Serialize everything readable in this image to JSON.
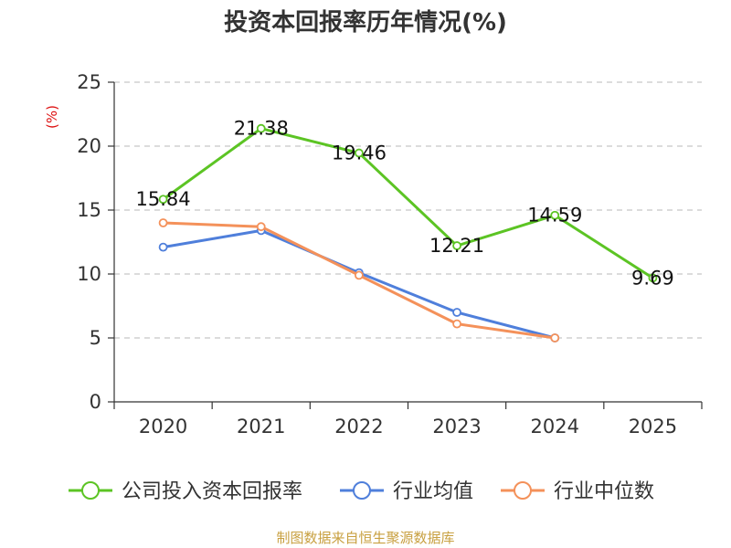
{
  "chart_data": {
    "type": "line",
    "title": "投资本回报率历年情况(%)",
    "ylabel": "(%)",
    "categories": [
      "2020",
      "2021",
      "2022",
      "2023",
      "2024",
      "2025"
    ],
    "ylim": [
      0,
      25
    ],
    "yticks": [
      0,
      5,
      10,
      15,
      20,
      25
    ],
    "grid": true,
    "legend_position": "bottom",
    "series": [
      {
        "name": "公司投入资本回报率",
        "color": "#5cc424",
        "values": [
          15.84,
          21.38,
          19.46,
          12.21,
          14.59,
          9.69
        ],
        "labels": [
          "15.84",
          "21.38",
          "19.46",
          "12.21",
          "14.59",
          "9.69"
        ]
      },
      {
        "name": "行业均值",
        "color": "#4f7fdb",
        "values": [
          12.1,
          13.4,
          10.1,
          7.0,
          5.0,
          null
        ]
      },
      {
        "name": "行业中位数",
        "color": "#f4915a",
        "values": [
          14.0,
          13.7,
          9.9,
          6.1,
          5.0,
          null
        ]
      }
    ]
  },
  "source": "制图数据来自恒生聚源数据库"
}
